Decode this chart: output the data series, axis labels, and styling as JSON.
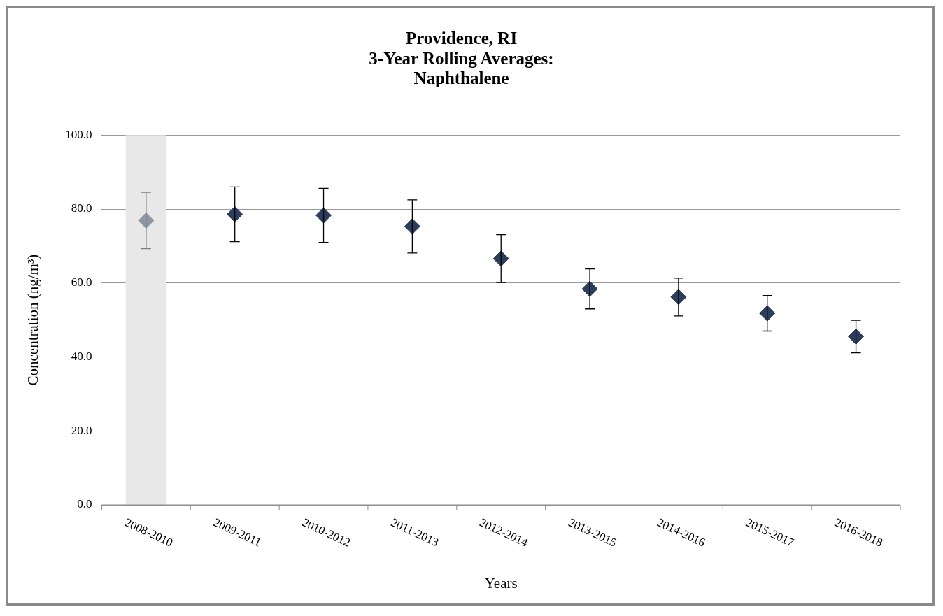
{
  "chart_data": {
    "type": "scatter",
    "title": "Providence, RI\n3-Year Rolling Averages:\nNaphthalene",
    "xlabel": "Years",
    "ylabel": "Concentration (ng/m³)",
    "categories": [
      "2008-2010",
      "2009-2011",
      "2010-2012",
      "2011-2013",
      "2012-2014",
      "2013-2015",
      "2014-2016",
      "2015-2017",
      "2016-2018"
    ],
    "values": [
      76.9,
      78.6,
      78.3,
      75.3,
      66.6,
      58.4,
      56.2,
      51.8,
      45.5
    ],
    "errors": [
      7.6,
      7.4,
      7.3,
      7.2,
      6.5,
      5.4,
      5.1,
      4.8,
      4.4
    ],
    "colors": [
      "#8d96a3",
      "#2c3e5c",
      "#2c3e5c",
      "#2c3e5c",
      "#2c3e5c",
      "#2c3e5c",
      "#2c3e5c",
      "#2c3e5c",
      "#2c3e5c"
    ],
    "ylim": [
      0,
      100
    ],
    "yticks": [
      {
        "value": 0,
        "label": "0.0"
      },
      {
        "value": 20,
        "label": "20.0"
      },
      {
        "value": 40,
        "label": "40.0"
      },
      {
        "value": 60,
        "label": "60.0"
      },
      {
        "value": 80,
        "label": "80.0"
      },
      {
        "value": 100,
        "label": "100.0"
      }
    ],
    "bands": [
      {
        "axis": "x",
        "from": "2008-2010",
        "to": "2008-2010",
        "color": "#e8e8e8"
      }
    ],
    "grid": "y",
    "legend": false,
    "marker": "diamond"
  }
}
